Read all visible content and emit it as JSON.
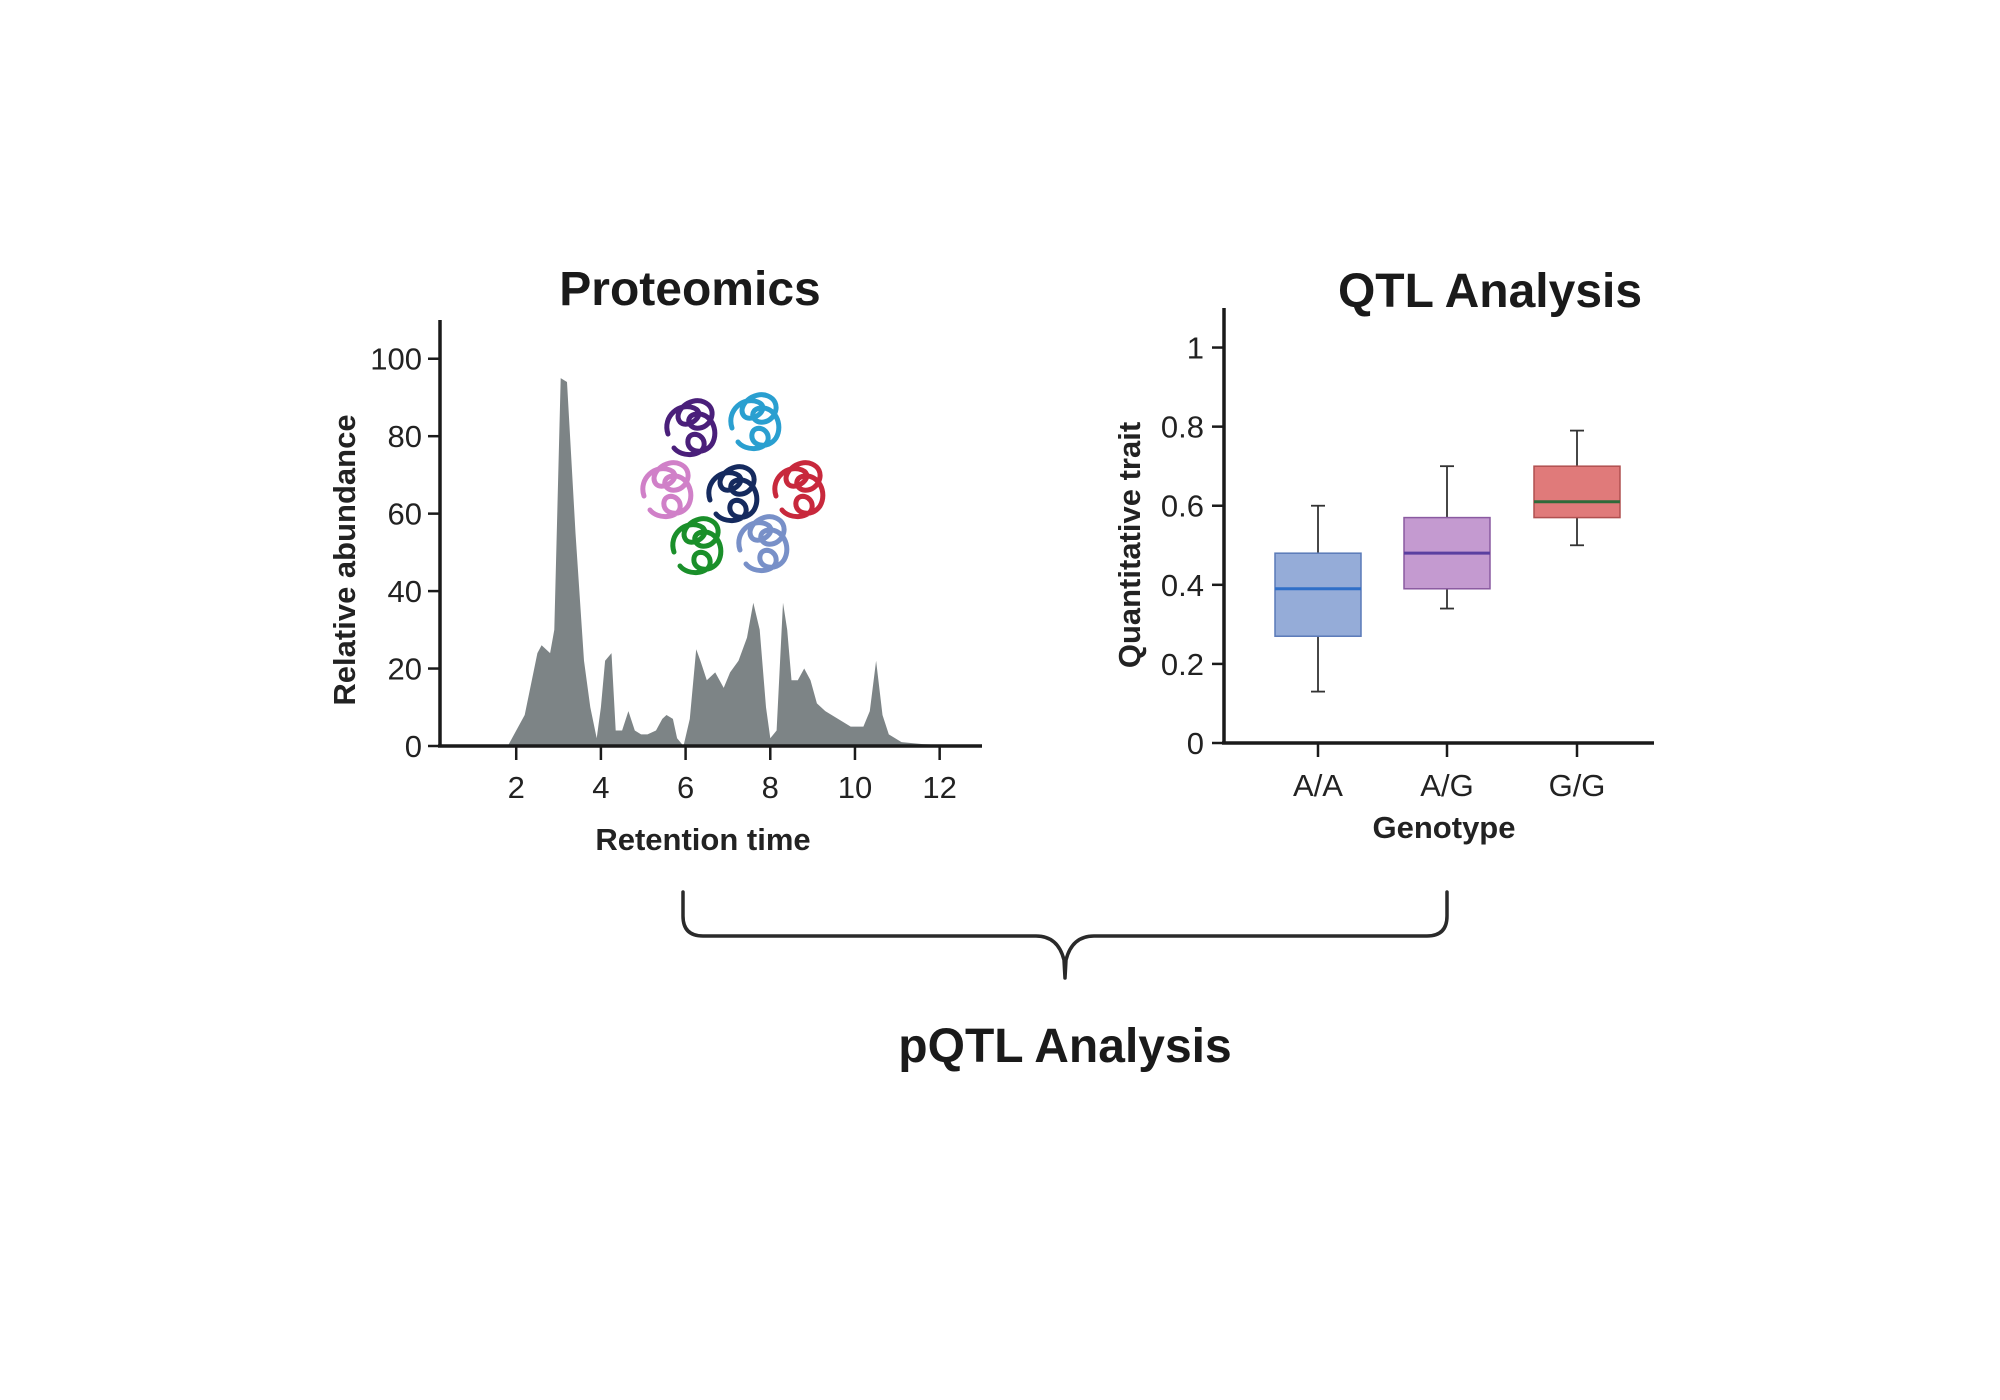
{
  "proteomics": {
    "title": "Proteomics",
    "chart_data": {
      "type": "area",
      "xlabel": "Retention time",
      "ylabel": "Relative abundance",
      "xlim": [
        0.2,
        13.0
      ],
      "ylim": [
        0,
        110
      ],
      "x_ticks": [
        "2",
        "4",
        "6",
        "8",
        "10",
        "12"
      ],
      "y_ticks": [
        "0",
        "20",
        "40",
        "60",
        "80",
        "100"
      ],
      "fill_color": "#7d8486",
      "x": [
        1.8,
        2.2,
        2.5,
        2.6,
        2.8,
        2.9,
        3.05,
        3.2,
        3.4,
        3.6,
        3.75,
        3.9,
        4.0,
        4.1,
        4.25,
        4.35,
        4.5,
        4.65,
        4.8,
        4.95,
        5.1,
        5.3,
        5.45,
        5.55,
        5.7,
        5.8,
        5.95,
        6.1,
        6.25,
        6.35,
        6.5,
        6.7,
        6.9,
        7.05,
        7.25,
        7.45,
        7.6,
        7.75,
        7.9,
        8.0,
        8.15,
        8.3,
        8.4,
        8.5,
        8.65,
        8.8,
        8.95,
        9.1,
        9.3,
        9.6,
        9.9,
        10.2,
        10.35,
        10.5,
        10.65,
        10.8,
        11.1,
        11.6,
        12.2,
        12.8
      ],
      "y": [
        0,
        8,
        24,
        26,
        24,
        30,
        95,
        94,
        55,
        22,
        10,
        2,
        10,
        22,
        24,
        4,
        4,
        9,
        4,
        3,
        3,
        4,
        7,
        8,
        7,
        2,
        0,
        7,
        25,
        22,
        17,
        19,
        15,
        19,
        22,
        28,
        37,
        30,
        10,
        2,
        4,
        37,
        30,
        17,
        17,
        20,
        17,
        11,
        9,
        7,
        5,
        5,
        9,
        22,
        8,
        3,
        1,
        0.5,
        0.2,
        0
      ],
      "protein_icon_colors": [
        "#4a1f7a",
        "#2a9fd0",
        "#d080c8",
        "#152a5e",
        "#c8283c",
        "#1a8f2a",
        "#7890c8"
      ]
    }
  },
  "qtl": {
    "title": "QTL Analysis",
    "chart_data": {
      "type": "box",
      "xlabel": "Genotype",
      "ylabel": "Quantitative trait",
      "ylim": [
        0,
        1.1
      ],
      "y_ticks": [
        "0",
        "0.2",
        "0.4",
        "0.6",
        "0.8",
        "1"
      ],
      "categories": [
        "A/A",
        "A/G",
        "G/G"
      ],
      "boxes": [
        {
          "min": 0.13,
          "q1": 0.27,
          "median": 0.39,
          "q3": 0.48,
          "max": 0.6,
          "fill": "#95acd8",
          "stroke": "#5a7ab8",
          "median_color": "#2f6fc8"
        },
        {
          "min": 0.34,
          "q1": 0.39,
          "median": 0.48,
          "q3": 0.57,
          "max": 0.7,
          "fill": "#c49ad0",
          "stroke": "#8a5aa0",
          "median_color": "#5a3fa0"
        },
        {
          "min": 0.5,
          "q1": 0.57,
          "median": 0.61,
          "q3": 0.7,
          "max": 0.79,
          "fill": "#e07a7a",
          "stroke": "#b05050",
          "median_color": "#2f6a3a"
        }
      ]
    }
  },
  "summary": {
    "title": "pQTL Analysis"
  }
}
